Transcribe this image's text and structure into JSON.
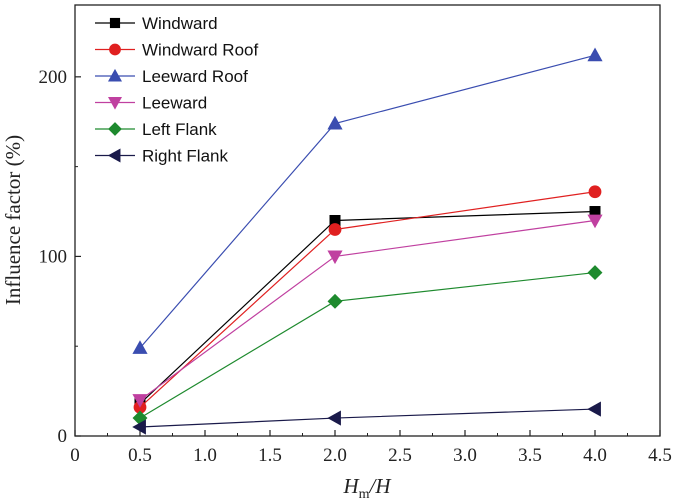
{
  "chart_data": {
    "type": "line",
    "xlabel_main": "H",
    "xlabel_sub": "m",
    "xlabel_rest": "/H",
    "ylabel": "Influence factor (%)",
    "xlim": [
      0,
      4.5
    ],
    "ylim": [
      0,
      240
    ],
    "x_ticks": [
      0,
      0.5,
      1.0,
      1.5,
      2.0,
      2.5,
      3.0,
      3.5,
      4.0,
      4.5
    ],
    "x_tick_labels": [
      "0",
      "0.5",
      "1.0",
      "1.5",
      "2.0",
      "2.5",
      "3.0",
      "3.5",
      "4.0",
      "4.5"
    ],
    "y_ticks": [
      0,
      100,
      200
    ],
    "y_tick_labels": [
      "0",
      "100",
      "200"
    ],
    "grid": false,
    "legend_position": "top-left",
    "x": [
      0.5,
      2.0,
      4.0
    ],
    "series": [
      {
        "name": "Windward",
        "values": [
          18,
          120,
          125
        ],
        "color": "#000000",
        "marker": "square"
      },
      {
        "name": "Windward Roof",
        "values": [
          16,
          115,
          136
        ],
        "color": "#e02020",
        "marker": "circle"
      },
      {
        "name": "Leeward Roof",
        "values": [
          49,
          174,
          212
        ],
        "color": "#3a4db0",
        "marker": "triangle-up"
      },
      {
        "name": "Leeward",
        "values": [
          20,
          100,
          120
        ],
        "color": "#c040a0",
        "marker": "triangle-down"
      },
      {
        "name": "Left Flank",
        "values": [
          10,
          75,
          91
        ],
        "color": "#1e8a2e",
        "marker": "diamond"
      },
      {
        "name": "Right Flank",
        "values": [
          5,
          10,
          15
        ],
        "color": "#1a1a4a",
        "marker": "triangle-left"
      }
    ]
  }
}
